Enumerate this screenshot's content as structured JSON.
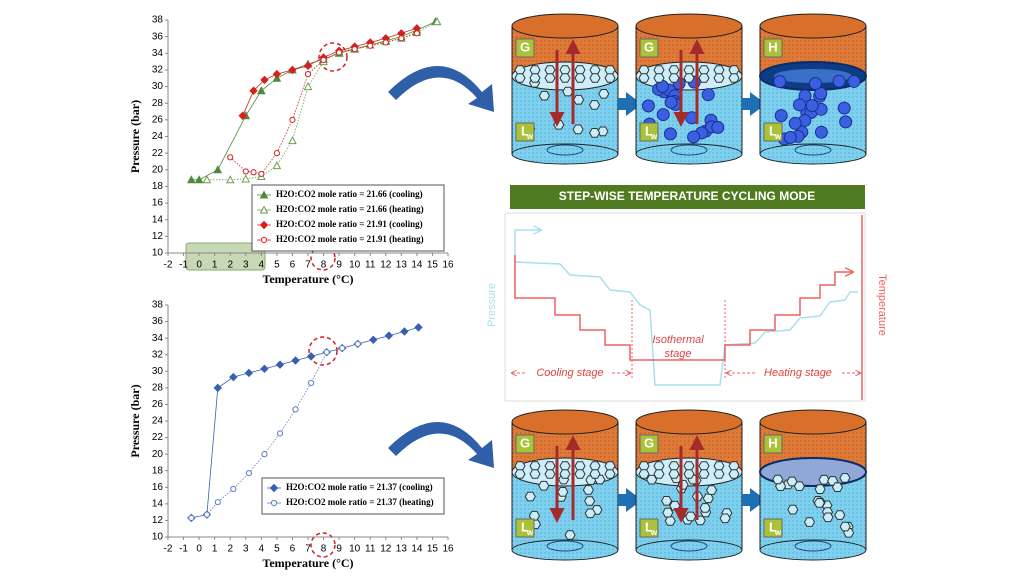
{
  "chart_data": [
    {
      "type": "line",
      "x_label": "Temperature (°C)",
      "y_label": "Pressure (bar)",
      "xlim": [
        -2,
        16
      ],
      "ylim": [
        10,
        38
      ],
      "xticks": [
        -2,
        -1,
        0,
        1,
        2,
        3,
        4,
        5,
        6,
        7,
        8,
        9,
        10,
        11,
        12,
        13,
        14,
        15,
        16
      ],
      "yticks": [
        10,
        12,
        14,
        16,
        18,
        20,
        22,
        24,
        26,
        28,
        30,
        32,
        34,
        36,
        38
      ],
      "series": [
        {
          "name": "H2O:CO2 mole ratio = 21.66 (cooling)",
          "color": "#4e8a3a",
          "marker": "triangle",
          "filled": true,
          "x": [
            -0.5,
            0,
            1.2,
            3,
            4,
            5,
            6,
            7,
            8,
            9,
            10,
            11,
            12,
            13,
            14,
            15.2
          ],
          "values": [
            18.8,
            18.8,
            20,
            26.5,
            29.5,
            31,
            32,
            32.7,
            33.3,
            34,
            34.5,
            35,
            35.5,
            36,
            36.8,
            37.8
          ]
        },
        {
          "name": "H2O:CO2 mole ratio = 21.66 (heating)",
          "color": "#6e9e50",
          "marker": "triangle",
          "filled": false,
          "x": [
            0.5,
            2,
            3,
            4,
            5,
            6,
            7,
            8,
            9,
            10,
            11,
            12,
            13,
            14,
            15.3
          ],
          "values": [
            18.8,
            18.8,
            18.9,
            19.2,
            20.5,
            23.5,
            30,
            33,
            34.2,
            34.6,
            35,
            35.4,
            35.8,
            36.5,
            37.8
          ]
        },
        {
          "name": "H2O:CO2 mole ratio = 21.91 (cooling)",
          "color": "#d42020",
          "marker": "diamond",
          "filled": true,
          "x": [
            2.8,
            3.5,
            4.2,
            5,
            6,
            7,
            8,
            9,
            10,
            11,
            12,
            13,
            14
          ],
          "values": [
            26.5,
            29.5,
            30.8,
            31.5,
            32,
            32.5,
            33.5,
            34.3,
            34.8,
            35.3,
            35.8,
            36.4,
            37
          ]
        },
        {
          "name": "H2O:CO2 mole ratio = 21.91 (heating)",
          "color": "#d42020",
          "marker": "circle",
          "filled": false,
          "x": [
            2,
            3,
            3.5,
            4,
            5,
            6,
            7,
            8,
            9,
            10,
            11,
            12,
            13,
            14
          ],
          "values": [
            21.5,
            19.8,
            19.7,
            19.5,
            22,
            26,
            31.5,
            33.2,
            34.1,
            34.5,
            34.9,
            35.3,
            35.8,
            36.4
          ]
        }
      ]
    },
    {
      "type": "line",
      "x_label": "Temperature (°C)",
      "y_label": "Pressure (bar)",
      "xlim": [
        -2,
        16
      ],
      "ylim": [
        10,
        38
      ],
      "xticks": [
        -2,
        -1,
        0,
        1,
        2,
        3,
        4,
        5,
        6,
        7,
        8,
        9,
        10,
        11,
        12,
        13,
        14,
        15,
        16
      ],
      "yticks": [
        10,
        12,
        14,
        16,
        18,
        20,
        22,
        24,
        26,
        28,
        30,
        32,
        34,
        36,
        38
      ],
      "series": [
        {
          "name": "H2O:CO2 mole ratio = 21.37 (cooling)",
          "color": "#3a5fb0",
          "marker": "diamond",
          "filled": true,
          "x": [
            -0.5,
            0.5,
            1.2,
            2.2,
            3.2,
            4.2,
            5.2,
            6.2,
            7.2,
            8.2,
            9.2,
            10.2,
            11.2,
            12.2,
            13.2,
            14.1
          ],
          "values": [
            12.3,
            12.7,
            28,
            29.3,
            29.8,
            30.3,
            30.8,
            31.3,
            31.8,
            32.3,
            32.8,
            33.3,
            33.8,
            34.3,
            34.8,
            35.3
          ]
        },
        {
          "name": "H2O:CO2 mole ratio = 21.37 (heating)",
          "color": "#5a7ec0",
          "marker": "circle",
          "filled": false,
          "x": [
            -0.5,
            0.5,
            1.2,
            2.2,
            3.2,
            4.2,
            5.2,
            6.2,
            7.2,
            8.2,
            9.2,
            10.2
          ],
          "values": [
            12.3,
            12.7,
            14.2,
            15.8,
            17.7,
            20,
            22.5,
            25.4,
            28.6,
            32.3,
            32.8,
            33.3
          ]
        }
      ]
    }
  ],
  "diagram": {
    "banner": "STEP-WISE TEMPERATURE CYCLING MODE",
    "pressure_label": "Pressure",
    "temperature_label": "Temperature",
    "isothermal": [
      "Isothermal",
      "stage"
    ],
    "cooling_stage": "Cooling stage",
    "heating_stage": "Heating stage",
    "top_row": [
      {
        "gas": "G",
        "liquid": "L",
        "sub": "w"
      },
      {
        "gas": "G",
        "liquid": "L",
        "sub": "w"
      },
      {
        "gas": "H",
        "liquid": "L",
        "sub": "w"
      }
    ],
    "bottom_row": [
      {
        "gas": "G",
        "liquid": "L",
        "sub": "w"
      },
      {
        "gas": "G",
        "liquid": "L",
        "sub": "w"
      },
      {
        "gas": "H",
        "liquid": "L",
        "sub": "w"
      }
    ]
  }
}
